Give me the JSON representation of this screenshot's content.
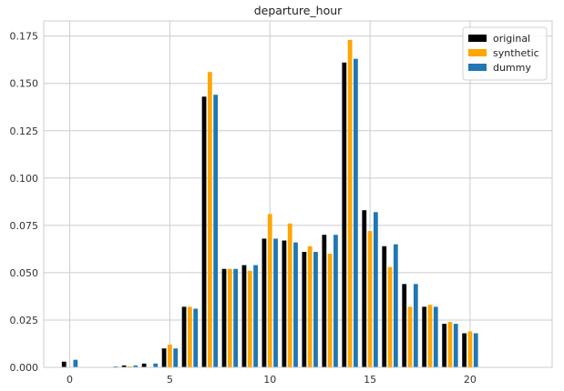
{
  "chart_data": {
    "type": "bar",
    "title": "departure_hour",
    "xlabel": "",
    "ylabel": "",
    "xlim": [
      -1.3,
      24.1
    ],
    "ylim": [
      0,
      0.183
    ],
    "x_ticks": [
      0,
      5,
      10,
      15,
      20
    ],
    "y_ticks": [
      0.0,
      0.025,
      0.05,
      0.075,
      0.1,
      0.125,
      0.15,
      0.175
    ],
    "y_tick_labels": [
      "0.000",
      "0.025",
      "0.050",
      "0.075",
      "0.100",
      "0.125",
      "0.150",
      "0.175"
    ],
    "grid": true,
    "legend_position": "top-right",
    "x": [
      0,
      1,
      2,
      3,
      4,
      5,
      6,
      7,
      8,
      9,
      10,
      11,
      12,
      13,
      14,
      15,
      16,
      17,
      18,
      19,
      20,
      21,
      22
    ],
    "series": [
      {
        "name": "original",
        "color": "#000000",
        "values": [
          0.003,
          0.0,
          0.0,
          0.001,
          0.002,
          0.01,
          0.032,
          0.143,
          0.052,
          0.054,
          0.068,
          0.067,
          0.061,
          0.07,
          0.161,
          0.083,
          0.064,
          0.044,
          0.032,
          0.023,
          0.018,
          0.0,
          0.0
        ]
      },
      {
        "name": "synthetic",
        "color": "#ffa500",
        "values": [
          0.0,
          0.0,
          0.0,
          0.0005,
          0.0,
          0.012,
          0.032,
          0.156,
          0.052,
          0.051,
          0.081,
          0.076,
          0.064,
          0.06,
          0.173,
          0.072,
          0.053,
          0.032,
          0.033,
          0.024,
          0.019,
          0.0,
          0.0
        ]
      },
      {
        "name": "dummy",
        "color": "#1f77b4",
        "values": [
          0.004,
          0.0,
          0.0005,
          0.001,
          0.002,
          0.01,
          0.031,
          0.144,
          0.052,
          0.054,
          0.068,
          0.066,
          0.061,
          0.07,
          0.163,
          0.082,
          0.065,
          0.044,
          0.032,
          0.023,
          0.018,
          0.0,
          0.0
        ]
      }
    ],
    "colors": {
      "grid": "#cccccc",
      "axes_border": "#cccccc"
    }
  }
}
